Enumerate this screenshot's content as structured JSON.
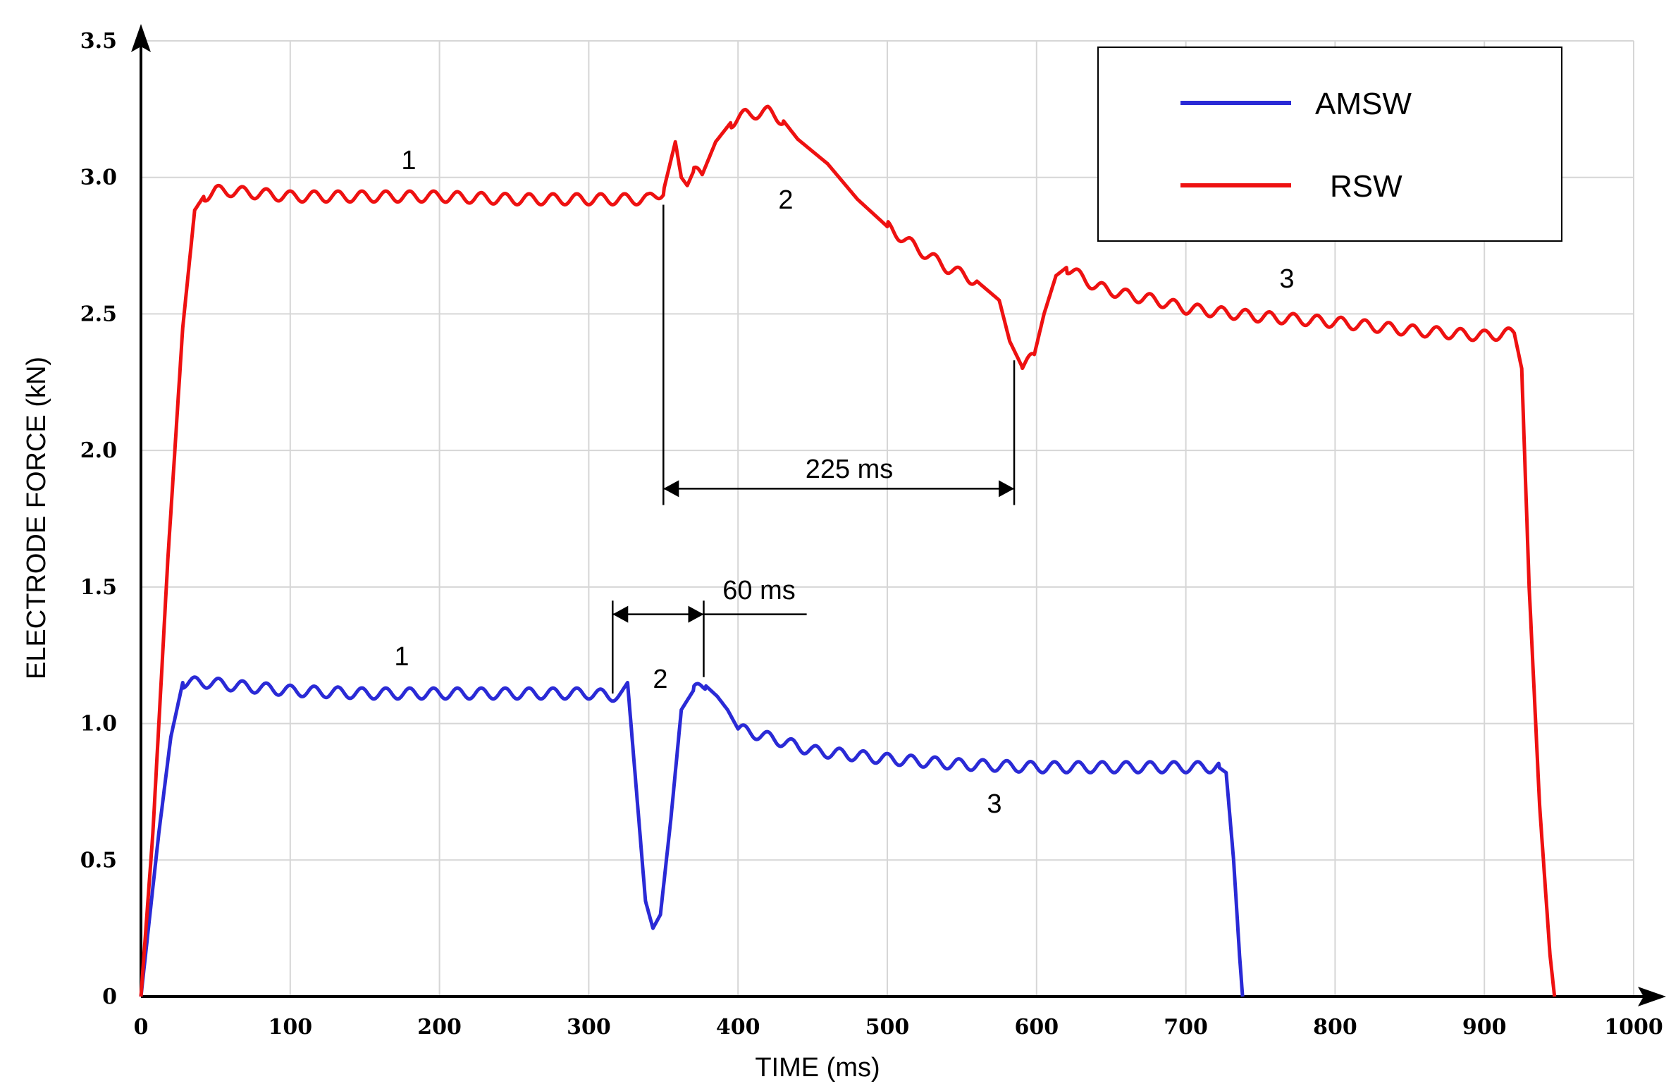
{
  "chart_data": {
    "type": "line",
    "xlabel": "TIME (ms)",
    "ylabel": "ELECTRODE FORCE (kN)",
    "xlim": [
      0,
      1000
    ],
    "ylim": [
      0,
      3.5
    ],
    "x_ticks": [
      "0",
      "100",
      "200",
      "300",
      "400",
      "500",
      "600",
      "700",
      "800",
      "900",
      "1000"
    ],
    "y_ticks": [
      "0",
      "0.5",
      "1.0",
      "1.5",
      "2.0",
      "2.5",
      "3.0",
      "3.5"
    ],
    "grid": true,
    "legend_position": "top-right",
    "colors": {
      "AMSW": "#2a2ad6",
      "RSW": "#ee1111"
    },
    "series": [
      {
        "name": "AMSW",
        "x": [
          0,
          5,
          12,
          20,
          28,
          35,
          45,
          60,
          80,
          100,
          150,
          200,
          250,
          300,
          320,
          326,
          332,
          338,
          343,
          348,
          355,
          362,
          370,
          378,
          386,
          393,
          400,
          420,
          450,
          500,
          550,
          600,
          650,
          700,
          722,
          727,
          732,
          736,
          738
        ],
        "y": [
          0,
          0.25,
          0.6,
          0.95,
          1.15,
          1.15,
          1.15,
          1.14,
          1.13,
          1.12,
          1.11,
          1.11,
          1.11,
          1.11,
          1.1,
          1.15,
          0.75,
          0.35,
          0.25,
          0.3,
          0.65,
          1.05,
          1.12,
          1.14,
          1.1,
          1.05,
          0.98,
          0.95,
          0.9,
          0.87,
          0.85,
          0.84,
          0.84,
          0.84,
          0.84,
          0.82,
          0.5,
          0.15,
          0
        ]
      },
      {
        "name": "RSW",
        "x": [
          0,
          8,
          18,
          28,
          36,
          42,
          50,
          60,
          80,
          100,
          150,
          200,
          250,
          300,
          340,
          350,
          358,
          362,
          366,
          370,
          376,
          385,
          395,
          405,
          420,
          430,
          440,
          460,
          480,
          500,
          520,
          540,
          560,
          575,
          582,
          590,
          598,
          605,
          613,
          620,
          640,
          660,
          680,
          700,
          750,
          800,
          850,
          900,
          920,
          925,
          930,
          937,
          944,
          947
        ],
        "y": [
          0,
          0.6,
          1.6,
          2.45,
          2.88,
          2.93,
          2.95,
          2.95,
          2.94,
          2.93,
          2.93,
          2.93,
          2.92,
          2.92,
          2.92,
          2.95,
          3.13,
          3.0,
          2.97,
          3.02,
          3.01,
          3.13,
          3.2,
          3.23,
          3.24,
          3.21,
          3.14,
          3.05,
          2.92,
          2.82,
          2.74,
          2.67,
          2.62,
          2.55,
          2.4,
          2.31,
          2.34,
          2.5,
          2.64,
          2.67,
          2.6,
          2.57,
          2.55,
          2.52,
          2.49,
          2.47,
          2.44,
          2.42,
          2.43,
          2.3,
          1.5,
          0.7,
          0.15,
          0
        ]
      }
    ],
    "annotations": {
      "rsw_label_1": "1",
      "rsw_label_2": "2",
      "rsw_label_3": "3",
      "amsw_label_1": "1",
      "amsw_label_2": "2",
      "amsw_label_3": "3",
      "rsw_interval": "225 ms",
      "amsw_interval": "60 ms"
    }
  }
}
